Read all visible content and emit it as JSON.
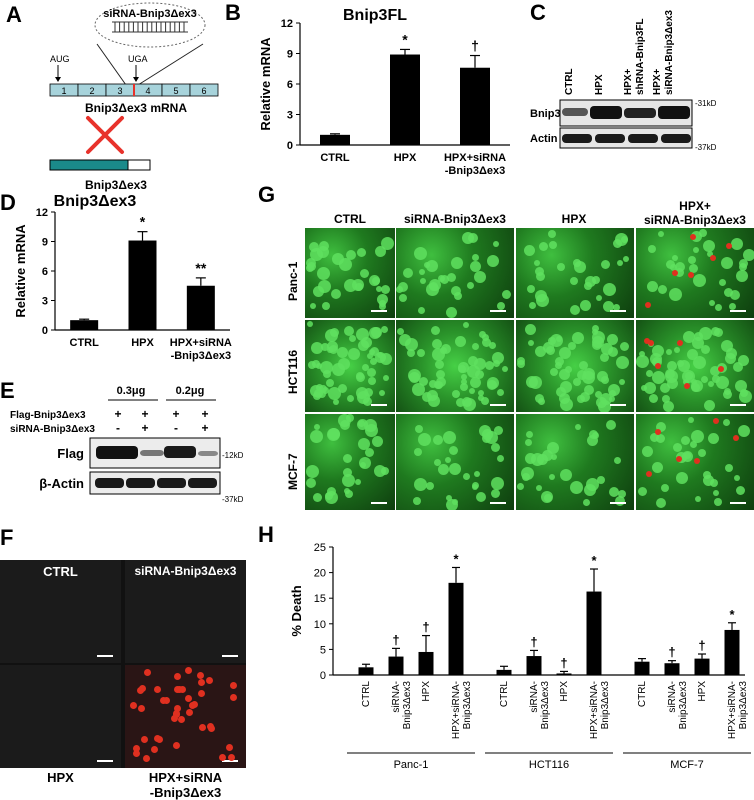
{
  "panels": {
    "A": {
      "label": "A",
      "sirna_label": "siRNA-Bnip3Δex3",
      "aug": "AUG",
      "uga": "UGA",
      "exons": [
        "1",
        "2",
        "3",
        "4",
        "5",
        "6"
      ],
      "mrna_label": "Bnip3Δex3 mRNA",
      "protein_label": "Bnip3Δex3",
      "colors": {
        "exon": "#a7d3db",
        "protein": "#1a8a8a",
        "cross": "#e8322b",
        "highlight": "#e8322b"
      }
    },
    "B": {
      "label": "B",
      "chart_data": {
        "type": "bar",
        "title": "Bnip3FL",
        "ylabel": "Relative mRNA",
        "categories": [
          "CTRL",
          "HPX",
          "HPX+siRNA\n-Bnip3Δex3"
        ],
        "category_lines": [
          [
            "CTRL"
          ],
          [
            "HPX"
          ],
          [
            "HPX+siRNA",
            "-Bnip3Δex3"
          ]
        ],
        "values": [
          1.0,
          8.9,
          7.6
        ],
        "errors": [
          0.1,
          0.5,
          1.2
        ],
        "annotations": [
          "",
          "*",
          "†"
        ],
        "ylim": [
          0,
          12
        ],
        "yticks": [
          0,
          3,
          6,
          9,
          12
        ]
      }
    },
    "C": {
      "label": "C",
      "lanes": [
        "CTRL",
        "HPX",
        "HPX+\nshRNA-Bnip3FL",
        "HPX+\nsiRNA-Bnip3Δex3"
      ],
      "lane_lines": [
        [
          "CTRL"
        ],
        [
          "HPX"
        ],
        [
          "HPX+",
          "shRNA-Bnip3FL"
        ],
        [
          "HPX+",
          "siRNA-Bnip3Δex3"
        ]
      ],
      "rows": [
        "Bnip3",
        "Actin"
      ],
      "markers": [
        "-31kD",
        "-37kD"
      ]
    },
    "D": {
      "label": "D",
      "chart_data": {
        "type": "bar",
        "title": "Bnip3Δex3",
        "ylabel": "Relative mRNA",
        "categories": [
          "CTRL",
          "HPX",
          "HPX+siRNA\n-Bnip3Δex3"
        ],
        "category_lines": [
          [
            "CTRL"
          ],
          [
            "HPX"
          ],
          [
            "HPX+siRNA",
            "-Bnip3Δex3"
          ]
        ],
        "values": [
          1.0,
          9.1,
          4.5
        ],
        "errors": [
          0.1,
          0.9,
          0.8
        ],
        "annotations": [
          "",
          "*",
          "**"
        ],
        "ylim": [
          0,
          12
        ],
        "yticks": [
          0,
          3,
          6,
          9,
          12
        ]
      }
    },
    "E": {
      "label": "E",
      "groups": [
        "0.3μg",
        "0.2μg"
      ],
      "row_labels": [
        "Flag-Bnip3Δex3",
        "siRNA-Bnip3Δex3"
      ],
      "row1": [
        "+",
        "+",
        "+",
        "+"
      ],
      "row2": [
        "-",
        "+",
        "-",
        "+"
      ],
      "blots": [
        "Flag",
        "β-Actin"
      ],
      "markers": [
        "-12kD",
        "-37kD"
      ]
    },
    "F": {
      "label": "F",
      "labels": [
        "CTRL",
        "siRNA-Bnip3Δex3",
        "HPX",
        "HPX+siRNA\n-Bnip3Δex3"
      ],
      "label_lines": [
        [
          "CTRL"
        ],
        [
          "siRNA-Bnip3Δex3"
        ],
        [
          "HPX"
        ],
        [
          "HPX+siRNA",
          "-Bnip3Δex3"
        ]
      ]
    },
    "G": {
      "label": "G",
      "columns": [
        "CTRL",
        "siRNA-Bnip3Δex3",
        "HPX",
        "HPX+\nsiRNA-Bnip3Δex3"
      ],
      "column_lines": [
        [
          "CTRL"
        ],
        [
          "siRNA-Bnip3Δex3"
        ],
        [
          "HPX"
        ],
        [
          "HPX+",
          "siRNA-Bnip3Δex3"
        ]
      ],
      "rows": [
        "Panc-1",
        "HCT116",
        "MCF-7"
      ]
    },
    "H": {
      "label": "H",
      "chart_data": {
        "type": "bar",
        "ylabel": "% Death",
        "ylim": [
          0,
          25
        ],
        "yticks": [
          0,
          5,
          10,
          15,
          20,
          25
        ],
        "groups": [
          "Panc-1",
          "HCT116",
          "MCF-7"
        ],
        "categories": [
          "CTRL",
          "siRNA-\nBnip3Δex3",
          "HPX",
          "HPX+siRNA-\nBnip3Δex3"
        ],
        "category_lines": [
          [
            "CTRL"
          ],
          [
            "siRNA-",
            "Bnip3Δex3"
          ],
          [
            "HPX"
          ],
          [
            "HPX+siRNA-",
            "Bnip3Δex3"
          ]
        ],
        "series": [
          {
            "group": "Panc-1",
            "values": [
              1.5,
              3.6,
              4.5,
              18.0
            ],
            "errors": [
              0.6,
              1.6,
              3.2,
              3.0
            ],
            "annotations": [
              "",
              "†",
              "†",
              "*"
            ]
          },
          {
            "group": "HCT116",
            "values": [
              1.0,
              3.7,
              0.3,
              16.3
            ],
            "errors": [
              0.7,
              1.1,
              0.4,
              4.4
            ],
            "annotations": [
              "",
              "†",
              "†",
              "*"
            ]
          },
          {
            "group": "MCF-7",
            "values": [
              2.6,
              2.3,
              3.2,
              8.8
            ],
            "errors": [
              0.6,
              0.5,
              0.9,
              1.4
            ],
            "annotations": [
              "",
              "†",
              "†",
              "*"
            ]
          }
        ]
      }
    }
  }
}
